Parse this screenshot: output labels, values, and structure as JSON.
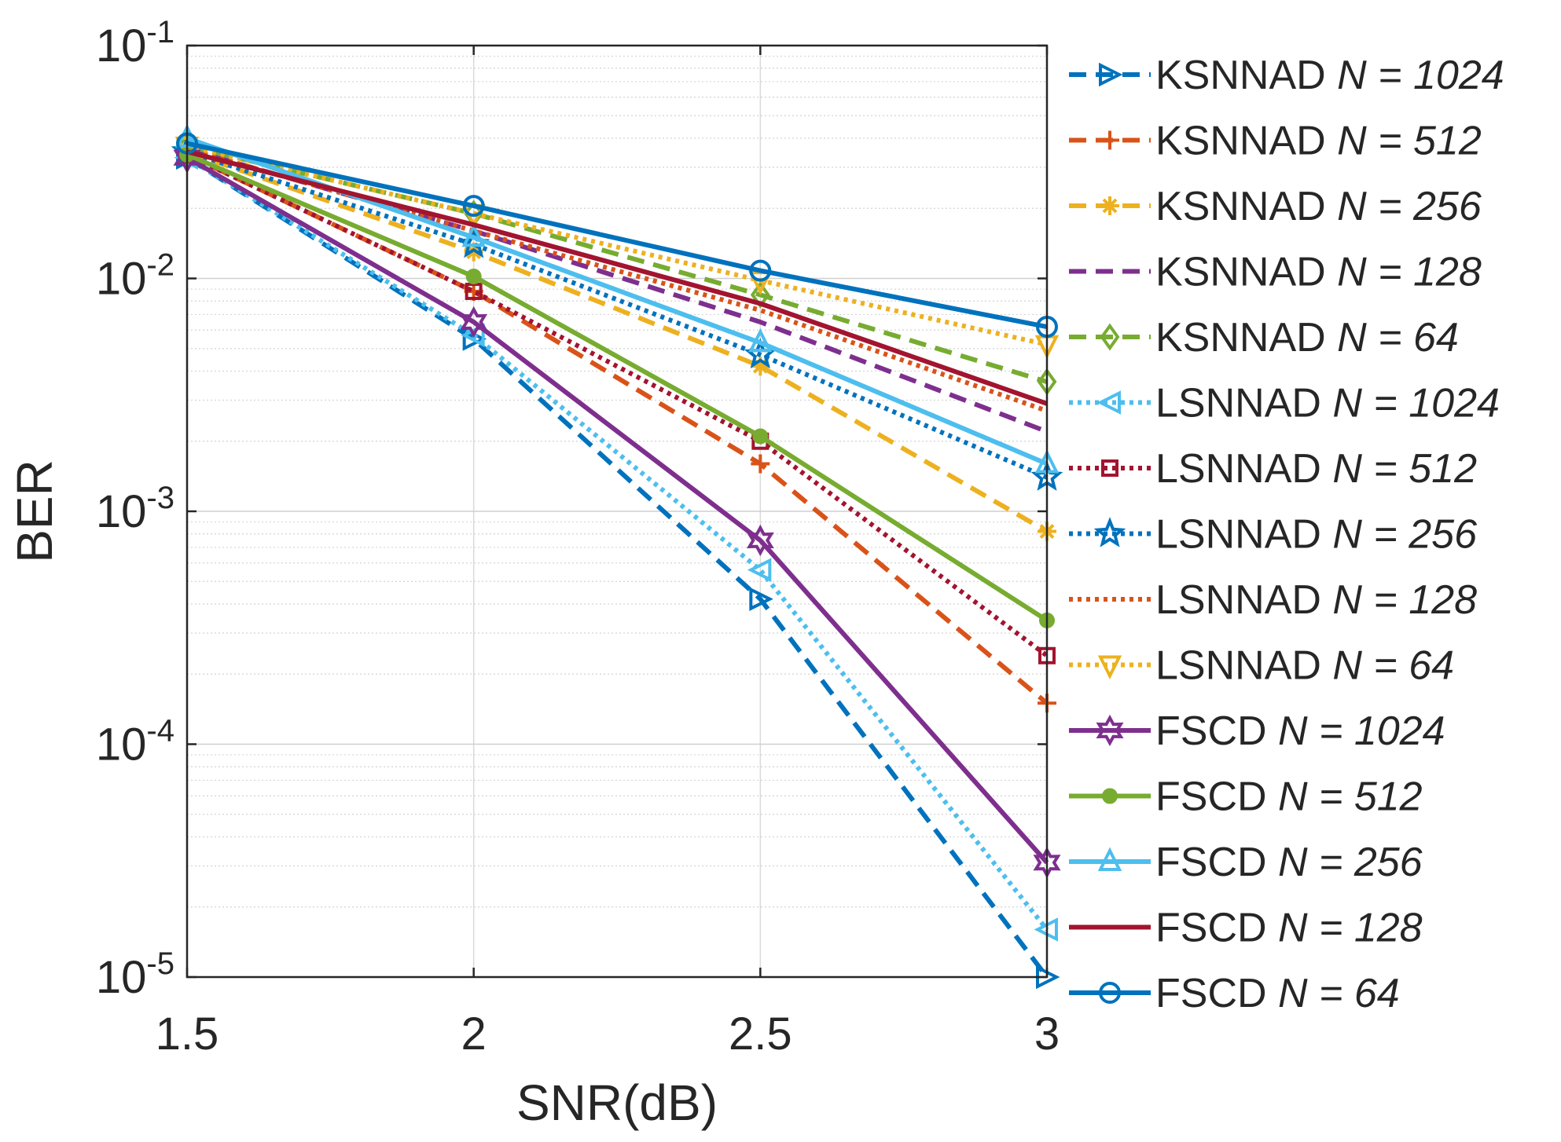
{
  "chart_data": {
    "type": "line",
    "title": "",
    "xlabel": "SNR(dB)",
    "ylabel": "BER",
    "x": [
      1.5,
      2,
      2.5,
      3
    ],
    "xlim": [
      1.5,
      3
    ],
    "ylim": [
      1e-05,
      0.1
    ],
    "yscale": "log",
    "grid": true,
    "legend_position": "outside-right",
    "x_ticks": [
      1.5,
      2,
      2.5,
      3
    ],
    "x_tick_labels": [
      "1.5",
      "2",
      "2.5",
      "3"
    ],
    "y_ticks": [
      -5,
      -4,
      -3,
      -2,
      -1
    ],
    "y_tick_labels": [
      {
        "base": "10",
        "exp": "-5"
      },
      {
        "base": "10",
        "exp": "-4"
      },
      {
        "base": "10",
        "exp": "-3"
      },
      {
        "base": "10",
        "exp": "-2"
      },
      {
        "base": "10",
        "exp": "-1"
      }
    ],
    "series": [
      {
        "name": "KSNNAD",
        "var": "N",
        "eq": " = ",
        "size": "1024",
        "color": "#0072BD",
        "dash": "dash",
        "marker": "triangle-right",
        "values": [
          0.033,
          0.0055,
          0.00042,
          1e-05
        ]
      },
      {
        "name": "KSNNAD",
        "var": "N",
        "eq": " = ",
        "size": "512",
        "color": "#D95319",
        "dash": "dash",
        "marker": "plus",
        "values": [
          0.034,
          0.0088,
          0.0016,
          0.00015
        ]
      },
      {
        "name": "KSNNAD",
        "var": "N",
        "eq": " = ",
        "size": "256",
        "color": "#EDB120",
        "dash": "dash",
        "marker": "asterisk",
        "values": [
          0.035,
          0.013,
          0.0042,
          0.00082
        ]
      },
      {
        "name": "KSNNAD",
        "var": "N",
        "eq": " = ",
        "size": "128",
        "color": "#7E2F8E",
        "dash": "dash",
        "marker": "none",
        "values": [
          0.036,
          0.016,
          0.0065,
          0.0022
        ]
      },
      {
        "name": "KSNNAD",
        "var": "N",
        "eq": " = ",
        "size": "64",
        "color": "#77AC30",
        "dash": "dash",
        "marker": "diamond",
        "values": [
          0.037,
          0.019,
          0.0085,
          0.0036
        ]
      },
      {
        "name": "LSNNAD",
        "var": "N",
        "eq": " = ",
        "size": "1024",
        "color": "#4DBEEE",
        "dash": "dot",
        "marker": "triangle-left",
        "values": [
          0.033,
          0.0057,
          0.00056,
          1.6e-05
        ]
      },
      {
        "name": "LSNNAD",
        "var": "N",
        "eq": " = ",
        "size": "512",
        "color": "#A2142F",
        "dash": "dot",
        "marker": "square",
        "values": [
          0.034,
          0.0088,
          0.002,
          0.00024
        ]
      },
      {
        "name": "LSNNAD",
        "var": "N",
        "eq": " = ",
        "size": "256",
        "color": "#0072BD",
        "dash": "dot",
        "marker": "star",
        "values": [
          0.035,
          0.014,
          0.0047,
          0.0014
        ]
      },
      {
        "name": "LSNNAD",
        "var": "N",
        "eq": " = ",
        "size": "128",
        "color": "#D95319",
        "dash": "dot",
        "marker": "none",
        "values": [
          0.036,
          0.016,
          0.0073,
          0.0027
        ]
      },
      {
        "name": "LSNNAD",
        "var": "N",
        "eq": " = ",
        "size": "64",
        "color": "#EDB120",
        "dash": "dot",
        "marker": "triangle-down",
        "values": [
          0.037,
          0.019,
          0.0098,
          0.0052
        ]
      },
      {
        "name": "FSCD",
        "var": "N",
        "eq": " = ",
        "size": "1024",
        "color": "#7E2F8E",
        "dash": "solid",
        "marker": "hexagram",
        "values": [
          0.033,
          0.0065,
          0.00075,
          3.1e-05
        ]
      },
      {
        "name": "FSCD",
        "var": "N",
        "eq": " = ",
        "size": "512",
        "color": "#77AC30",
        "dash": "solid",
        "marker": "dot",
        "values": [
          0.034,
          0.0102,
          0.0021,
          0.00034
        ]
      },
      {
        "name": "FSCD",
        "var": "N",
        "eq": " = ",
        "size": "256",
        "color": "#4DBEEE",
        "dash": "solid",
        "marker": "triangle-up",
        "values": [
          0.04,
          0.015,
          0.0053,
          0.0016
        ]
      },
      {
        "name": "FSCD",
        "var": "N",
        "eq": " = ",
        "size": "128",
        "color": "#A2142F",
        "dash": "solid",
        "marker": "none",
        "values": [
          0.035,
          0.017,
          0.0078,
          0.0029
        ]
      },
      {
        "name": "FSCD",
        "var": "N",
        "eq": " = ",
        "size": "64",
        "color": "#0072BD",
        "dash": "solid",
        "marker": "circle",
        "values": [
          0.038,
          0.0205,
          0.0108,
          0.0062
        ]
      }
    ]
  }
}
